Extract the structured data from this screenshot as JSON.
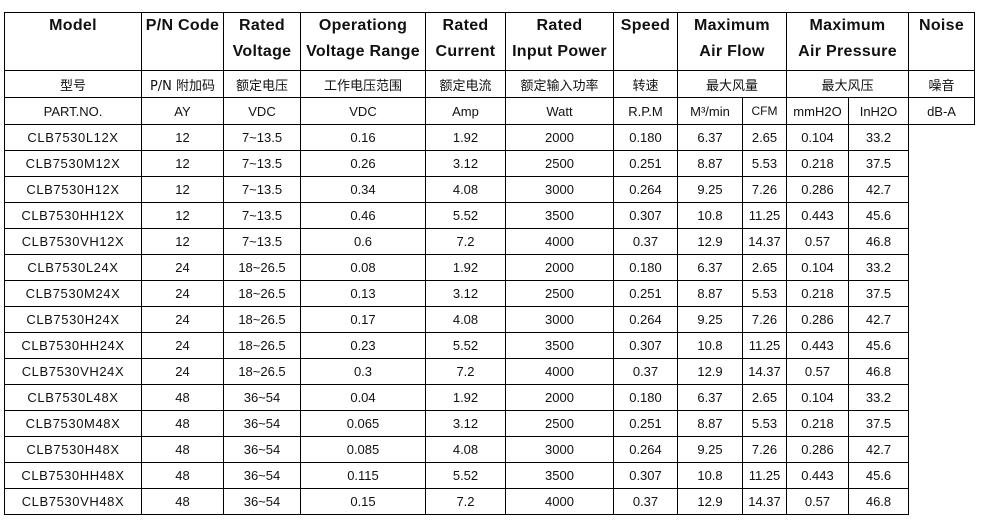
{
  "headers": {
    "model": "Model",
    "pn_code": "P/N Code",
    "rated_voltage": [
      "Rated",
      "Voltage"
    ],
    "op_voltage": [
      "Operationg",
      "Voltage Range"
    ],
    "rated_current": [
      "Rated",
      "Current"
    ],
    "rated_power": [
      "Rated",
      "Input Power"
    ],
    "speed": "Speed",
    "air_flow": [
      "Maximum",
      "Air Flow"
    ],
    "air_pressure": [
      "Maximum",
      "Air Pressure"
    ],
    "noise": "Noise"
  },
  "chinese": {
    "model": "型号",
    "pn_code": "P/N 附加码",
    "rated_voltage": "额定电压",
    "op_voltage": "工作电压范围",
    "rated_current": "额定电流",
    "rated_power": "额定输入功率",
    "speed": "转速",
    "air_flow": "最大风量",
    "air_pressure": "最大风压",
    "noise": "噪音"
  },
  "units": {
    "model": "PART.NO.",
    "rated_voltage": "VDC",
    "op_voltage": "VDC",
    "rated_current": "Amp",
    "rated_power": "Watt",
    "speed": "R.P.M",
    "flow_m3": "M³/min",
    "flow_cfm": "CFM",
    "pressure_mm": "mmH2O",
    "pressure_in": "InH2O",
    "noise": "dB-A"
  },
  "pn_code_value": "AY",
  "rows": [
    {
      "model": "CLB7530L12X",
      "v": "12",
      "range": "7~13.5",
      "amp": "0.16",
      "watt": "1.92",
      "rpm": "2000",
      "m3": "0.180",
      "cfm": "6.37",
      "mm": "2.65",
      "in": "0.104",
      "db": "33.2"
    },
    {
      "model": "CLB7530M12X",
      "v": "12",
      "range": "7~13.5",
      "amp": "0.26",
      "watt": "3.12",
      "rpm": "2500",
      "m3": "0.251",
      "cfm": "8.87",
      "mm": "5.53",
      "in": "0.218",
      "db": "37.5"
    },
    {
      "model": "CLB7530H12X",
      "v": "12",
      "range": "7~13.5",
      "amp": "0.34",
      "watt": "4.08",
      "rpm": "3000",
      "m3": "0.264",
      "cfm": "9.25",
      "mm": "7.26",
      "in": "0.286",
      "db": "42.7"
    },
    {
      "model": "CLB7530HH12X",
      "v": "12",
      "range": "7~13.5",
      "amp": "0.46",
      "watt": "5.52",
      "rpm": "3500",
      "m3": "0.307",
      "cfm": "10.8",
      "mm": "11.25",
      "in": "0.443",
      "db": "45.6"
    },
    {
      "model": "CLB7530VH12X",
      "v": "12",
      "range": "7~13.5",
      "amp": "0.6",
      "watt": "7.2",
      "rpm": "4000",
      "m3": "0.37",
      "cfm": "12.9",
      "mm": "14.37",
      "in": "0.57",
      "db": "46.8"
    },
    {
      "model": "CLB7530L24X",
      "v": "24",
      "range": "18~26.5",
      "amp": "0.08",
      "watt": "1.92",
      "rpm": "2000",
      "m3": "0.180",
      "cfm": "6.37",
      "mm": "2.65",
      "in": "0.104",
      "db": "33.2"
    },
    {
      "model": "CLB7530M24X",
      "v": "24",
      "range": "18~26.5",
      "amp": "0.13",
      "watt": "3.12",
      "rpm": "2500",
      "m3": "0.251",
      "cfm": "8.87",
      "mm": "5.53",
      "in": "0.218",
      "db": "37.5"
    },
    {
      "model": "CLB7530H24X",
      "v": "24",
      "range": "18~26.5",
      "amp": "0.17",
      "watt": "4.08",
      "rpm": "3000",
      "m3": "0.264",
      "cfm": "9.25",
      "mm": "7.26",
      "in": "0.286",
      "db": "42.7"
    },
    {
      "model": "CLB7530HH24X",
      "v": "24",
      "range": "18~26.5",
      "amp": "0.23",
      "watt": "5.52",
      "rpm": "3500",
      "m3": "0.307",
      "cfm": "10.8",
      "mm": "11.25",
      "in": "0.443",
      "db": "45.6"
    },
    {
      "model": "CLB7530VH24X",
      "v": "24",
      "range": "18~26.5",
      "amp": "0.3",
      "watt": "7.2",
      "rpm": "4000",
      "m3": "0.37",
      "cfm": "12.9",
      "mm": "14.37",
      "in": "0.57",
      "db": "46.8"
    },
    {
      "model": "CLB7530L48X",
      "v": "48",
      "range": "36~54",
      "amp": "0.04",
      "watt": "1.92",
      "rpm": "2000",
      "m3": "0.180",
      "cfm": "6.37",
      "mm": "2.65",
      "in": "0.104",
      "db": "33.2"
    },
    {
      "model": "CLB7530M48X",
      "v": "48",
      "range": "36~54",
      "amp": "0.065",
      "watt": "3.12",
      "rpm": "2500",
      "m3": "0.251",
      "cfm": "8.87",
      "mm": "5.53",
      "in": "0.218",
      "db": "37.5"
    },
    {
      "model": "CLB7530H48X",
      "v": "48",
      "range": "36~54",
      "amp": "0.085",
      "watt": "4.08",
      "rpm": "3000",
      "m3": "0.264",
      "cfm": "9.25",
      "mm": "7.26",
      "in": "0.286",
      "db": "42.7"
    },
    {
      "model": "CLB7530HH48X",
      "v": "48",
      "range": "36~54",
      "amp": "0.115",
      "watt": "5.52",
      "rpm": "3500",
      "m3": "0.307",
      "cfm": "10.8",
      "mm": "11.25",
      "in": "0.443",
      "db": "45.6"
    },
    {
      "model": "CLB7530VH48X",
      "v": "48",
      "range": "36~54",
      "amp": "0.15",
      "watt": "7.2",
      "rpm": "4000",
      "m3": "0.37",
      "cfm": "12.9",
      "mm": "14.37",
      "in": "0.57",
      "db": "46.8"
    }
  ]
}
